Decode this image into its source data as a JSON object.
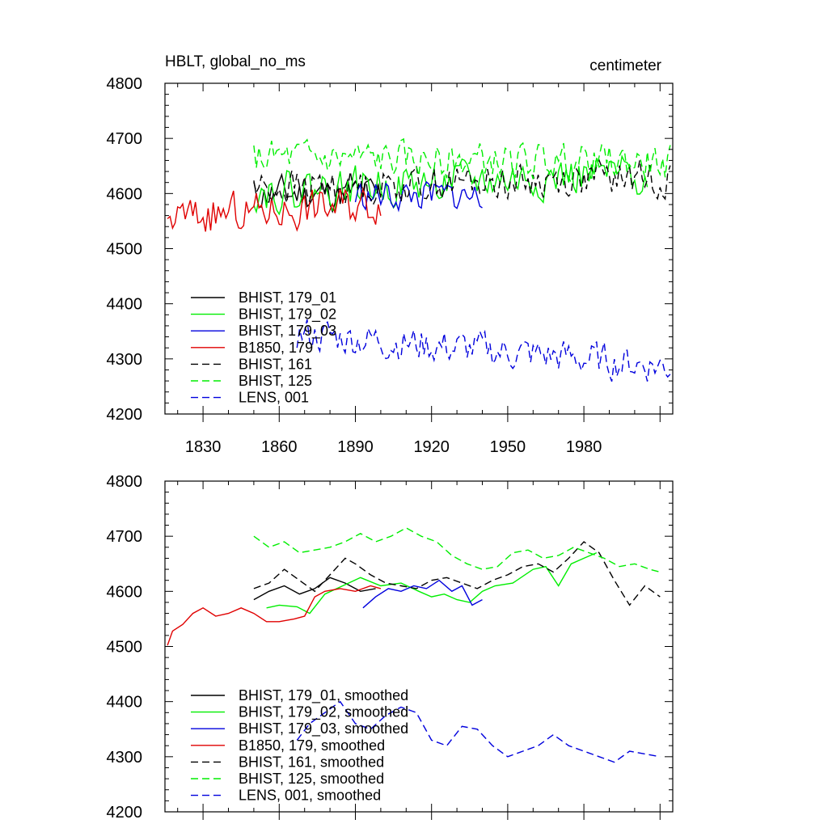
{
  "chart_data": [
    {
      "type": "line",
      "title": "HBLT, global_no_ms",
      "units": "centimeter",
      "xlabel": "",
      "ylabel": "",
      "xlim": [
        1815,
        2015
      ],
      "ylim": [
        4200,
        4800
      ],
      "yticks": [
        4200,
        4300,
        4400,
        4500,
        4600,
        4700,
        4800
      ],
      "xticks": [
        1830,
        1860,
        1890,
        1920,
        1950,
        1980
      ],
      "legend_position": "bottom-left",
      "series": [
        {
          "name": "BHIST, 179_01",
          "color": "#000000",
          "dash": "solid",
          "start": 1850,
          "end": 1900,
          "base": 4600,
          "amp": 45,
          "trend": 0,
          "seed": 11
        },
        {
          "name": "BHIST, 179_02",
          "color": "#00ee00",
          "dash": "solid",
          "start": 1850,
          "end": 2005,
          "base": 4605,
          "amp": 50,
          "trend": 30,
          "seed": 22
        },
        {
          "name": "BHIST, 179_03",
          "color": "#0000dd",
          "dash": "solid",
          "start": 1890,
          "end": 1940,
          "base": 4595,
          "amp": 40,
          "trend": 0,
          "seed": 33
        },
        {
          "name": "B1850, 179",
          "color": "#e00000",
          "dash": "solid",
          "start": 1816,
          "end": 1900,
          "base": 4555,
          "amp": 50,
          "trend": 30,
          "seed": 44
        },
        {
          "name": "BHIST, 161",
          "color": "#000000",
          "dash": "dashed",
          "start": 1850,
          "end": 2014,
          "base": 4610,
          "amp": 45,
          "trend": 20,
          "seed": 55
        },
        {
          "name": "BHIST, 125",
          "color": "#00ee00",
          "dash": "dashed",
          "start": 1850,
          "end": 2014,
          "base": 4665,
          "amp": 45,
          "trend": -10,
          "seed": 66
        },
        {
          "name": "LENS, 001",
          "color": "#0000dd",
          "dash": "dashed",
          "start": 1867,
          "end": 2014,
          "base": 4345,
          "amp": 45,
          "trend": -60,
          "seed": 77
        }
      ]
    },
    {
      "type": "line",
      "title": "",
      "xlabel": "",
      "ylabel": "",
      "xlim": [
        1815,
        2015
      ],
      "ylim": [
        4200,
        4800
      ],
      "yticks": [
        4200,
        4300,
        4400,
        4500,
        4600,
        4700,
        4800
      ],
      "legend_position": "bottom-left",
      "series": [
        {
          "name": "BHIST, 179_01, smoothed",
          "color": "#000000",
          "dash": "solid",
          "x": [
            1850,
            1856,
            1862,
            1868,
            1874,
            1880,
            1886,
            1892,
            1898
          ],
          "y": [
            4585,
            4600,
            4610,
            4595,
            4605,
            4625,
            4615,
            4600,
            4605
          ]
        },
        {
          "name": "BHIST, 179_02, smoothed",
          "color": "#00ee00",
          "dash": "solid",
          "x": [
            1855,
            1860,
            1867,
            1872,
            1878,
            1885,
            1892,
            1900,
            1908,
            1915,
            1920,
            1925,
            1930,
            1935,
            1940,
            1945,
            1952,
            1960,
            1965,
            1970,
            1975,
            1980,
            1985
          ],
          "y": [
            4570,
            4575,
            4572,
            4560,
            4595,
            4610,
            4625,
            4610,
            4615,
            4600,
            4590,
            4595,
            4585,
            4580,
            4600,
            4610,
            4615,
            4640,
            4645,
            4610,
            4650,
            4660,
            4670
          ]
        },
        {
          "name": "BHIST, 179_03, smoothed",
          "color": "#0000dd",
          "dash": "solid",
          "x": [
            1893,
            1898,
            1903,
            1908,
            1913,
            1918,
            1923,
            1928,
            1932,
            1936,
            1940
          ],
          "y": [
            4570,
            4590,
            4605,
            4600,
            4610,
            4605,
            4620,
            4600,
            4610,
            4575,
            4585
          ]
        },
        {
          "name": "B1850, 179, smoothed",
          "color": "#e00000",
          "dash": "solid",
          "x": [
            1816,
            1818,
            1822,
            1826,
            1830,
            1835,
            1840,
            1845,
            1850,
            1855,
            1860,
            1866,
            1870,
            1874,
            1878,
            1884,
            1890,
            1896,
            1900
          ],
          "y": [
            4502,
            4528,
            4540,
            4560,
            4570,
            4555,
            4560,
            4570,
            4560,
            4545,
            4545,
            4550,
            4555,
            4590,
            4600,
            4605,
            4600,
            4610,
            4605
          ]
        },
        {
          "name": "BHIST, 161, smoothed",
          "color": "#000000",
          "dash": "dashed",
          "x": [
            1850,
            1856,
            1862,
            1868,
            1874,
            1880,
            1886,
            1890,
            1896,
            1902,
            1908,
            1914,
            1920,
            1926,
            1932,
            1938,
            1944,
            1950,
            1956,
            1962,
            1968,
            1974,
            1980,
            1986,
            1992,
            1998,
            2004,
            2010
          ],
          "y": [
            4605,
            4615,
            4640,
            4620,
            4600,
            4630,
            4660,
            4650,
            4630,
            4615,
            4610,
            4605,
            4620,
            4625,
            4615,
            4605,
            4620,
            4630,
            4645,
            4650,
            4635,
            4660,
            4690,
            4670,
            4620,
            4575,
            4610,
            4590
          ]
        },
        {
          "name": "BHIST, 125, smoothed",
          "color": "#00ee00",
          "dash": "dashed",
          "x": [
            1850,
            1856,
            1862,
            1868,
            1874,
            1880,
            1886,
            1892,
            1898,
            1904,
            1910,
            1916,
            1922,
            1928,
            1934,
            1940,
            1946,
            1952,
            1958,
            1964,
            1970,
            1976,
            1982,
            1988,
            1994,
            2000,
            2006,
            2010
          ],
          "y": [
            4700,
            4680,
            4690,
            4670,
            4675,
            4680,
            4690,
            4705,
            4690,
            4700,
            4715,
            4700,
            4690,
            4665,
            4650,
            4640,
            4645,
            4670,
            4675,
            4660,
            4665,
            4680,
            4670,
            4660,
            4645,
            4650,
            4640,
            4635
          ]
        },
        {
          "name": "LENS, 001, smoothed",
          "color": "#0000dd",
          "dash": "dashed",
          "x": [
            1867,
            1872,
            1878,
            1884,
            1890,
            1896,
            1902,
            1908,
            1914,
            1920,
            1926,
            1932,
            1938,
            1944,
            1950,
            1956,
            1962,
            1968,
            1974,
            1980,
            1986,
            1992,
            1998,
            2004,
            2010
          ],
          "y": [
            4330,
            4360,
            4380,
            4400,
            4360,
            4350,
            4375,
            4390,
            4380,
            4330,
            4320,
            4355,
            4350,
            4320,
            4300,
            4310,
            4320,
            4340,
            4320,
            4310,
            4300,
            4290,
            4310,
            4305,
            4300
          ]
        }
      ]
    }
  ]
}
